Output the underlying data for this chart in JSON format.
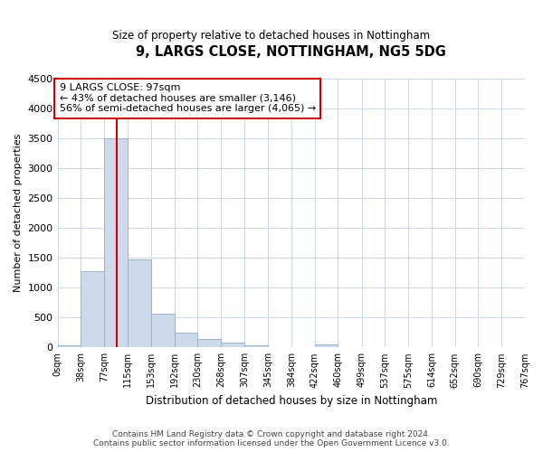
{
  "title": "9, LARGS CLOSE, NOTTINGHAM, NG5 5DG",
  "subtitle": "Size of property relative to detached houses in Nottingham",
  "xlabel": "Distribution of detached houses by size in Nottingham",
  "ylabel": "Number of detached properties",
  "footer_line1": "Contains HM Land Registry data © Crown copyright and database right 2024.",
  "footer_line2": "Contains public sector information licensed under the Open Government Licence v3.0.",
  "bar_color": "#ccdaeb",
  "bar_edge_color": "#9ab4cc",
  "vline_color": "#cc0000",
  "vline_x": 97,
  "annotation_line1": "9 LARGS CLOSE: 97sqm",
  "annotation_line2": "← 43% of detached houses are smaller (3,146)",
  "annotation_line3": "56% of semi-detached houses are larger (4,065) →",
  "annotation_box_color": "#ffffff",
  "annotation_box_edge": "#cc0000",
  "bin_edges": [
    0,
    38,
    77,
    115,
    153,
    192,
    230,
    268,
    307,
    345,
    384,
    422,
    460,
    499,
    537,
    575,
    614,
    652,
    690,
    729,
    767
  ],
  "bin_counts": [
    30,
    1270,
    3500,
    1470,
    570,
    240,
    140,
    80,
    30,
    5,
    2,
    50,
    2,
    0,
    0,
    0,
    0,
    0,
    0,
    0
  ],
  "ylim": [
    0,
    4500
  ],
  "yticks": [
    0,
    500,
    1000,
    1500,
    2000,
    2500,
    3000,
    3500,
    4000,
    4500
  ],
  "xtick_labels": [
    "0sqm",
    "38sqm",
    "77sqm",
    "115sqm",
    "153sqm",
    "192sqm",
    "230sqm",
    "268sqm",
    "307sqm",
    "345sqm",
    "384sqm",
    "422sqm",
    "460sqm",
    "499sqm",
    "537sqm",
    "575sqm",
    "614sqm",
    "652sqm",
    "690sqm",
    "729sqm",
    "767sqm"
  ],
  "background_color": "#ffffff",
  "grid_color": "#ccd8e8"
}
